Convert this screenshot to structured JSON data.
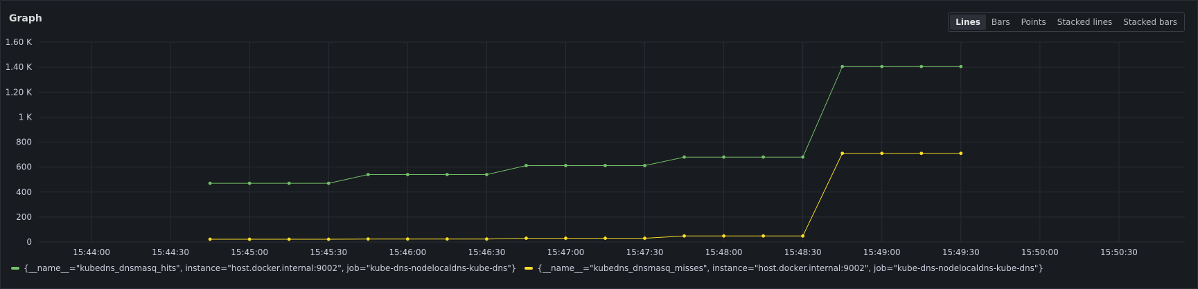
{
  "panel": {
    "title": "Graph",
    "viz_modes": [
      "Lines",
      "Bars",
      "Points",
      "Stacked lines",
      "Stacked bars"
    ],
    "active_mode": "Lines"
  },
  "chart_data": {
    "type": "line",
    "y_ticks": [
      "0",
      "200",
      "400",
      "600",
      "800",
      "1 K",
      "1.20 K",
      "1.40 K",
      "1.60 K"
    ],
    "ylim": [
      0,
      1600
    ],
    "x_ticks": [
      "15:44:00",
      "15:44:30",
      "15:45:00",
      "15:45:30",
      "15:46:00",
      "15:46:30",
      "15:47:00",
      "15:47:30",
      "15:48:00",
      "15:48:30",
      "15:49:00",
      "15:49:30",
      "15:50:00",
      "15:50:30"
    ],
    "xlim": [
      "15:43:40",
      "15:50:55"
    ],
    "x": [
      "15:44:45",
      "15:45:00",
      "15:45:15",
      "15:45:30",
      "15:45:45",
      "15:46:00",
      "15:46:15",
      "15:46:30",
      "15:46:45",
      "15:47:00",
      "15:47:15",
      "15:47:30",
      "15:47:45",
      "15:48:00",
      "15:48:15",
      "15:48:30",
      "15:48:45",
      "15:49:00",
      "15:49:15",
      "15:49:30"
    ],
    "grid": true,
    "legend_position": "bottom-left",
    "series": [
      {
        "name": "{__name__=\"kubedns_dnsmasq_hits\", instance=\"host.docker.internal:9002\", job=\"kube-dns-nodelocaldns-kube-dns\"}",
        "color": "#73bf69",
        "values": [
          470,
          470,
          470,
          470,
          540,
          540,
          540,
          540,
          612,
          612,
          612,
          612,
          680,
          680,
          680,
          680,
          1405,
          1405,
          1405,
          1405
        ]
      },
      {
        "name": "{__name__=\"kubedns_dnsmasq_misses\", instance=\"host.docker.internal:9002\", job=\"kube-dns-nodelocaldns-kube-dns\"}",
        "color": "#fade2a",
        "values": [
          22,
          22,
          22,
          22,
          24,
          24,
          24,
          24,
          30,
          30,
          30,
          30,
          48,
          48,
          48,
          48,
          710,
          710,
          710,
          710
        ]
      }
    ]
  }
}
